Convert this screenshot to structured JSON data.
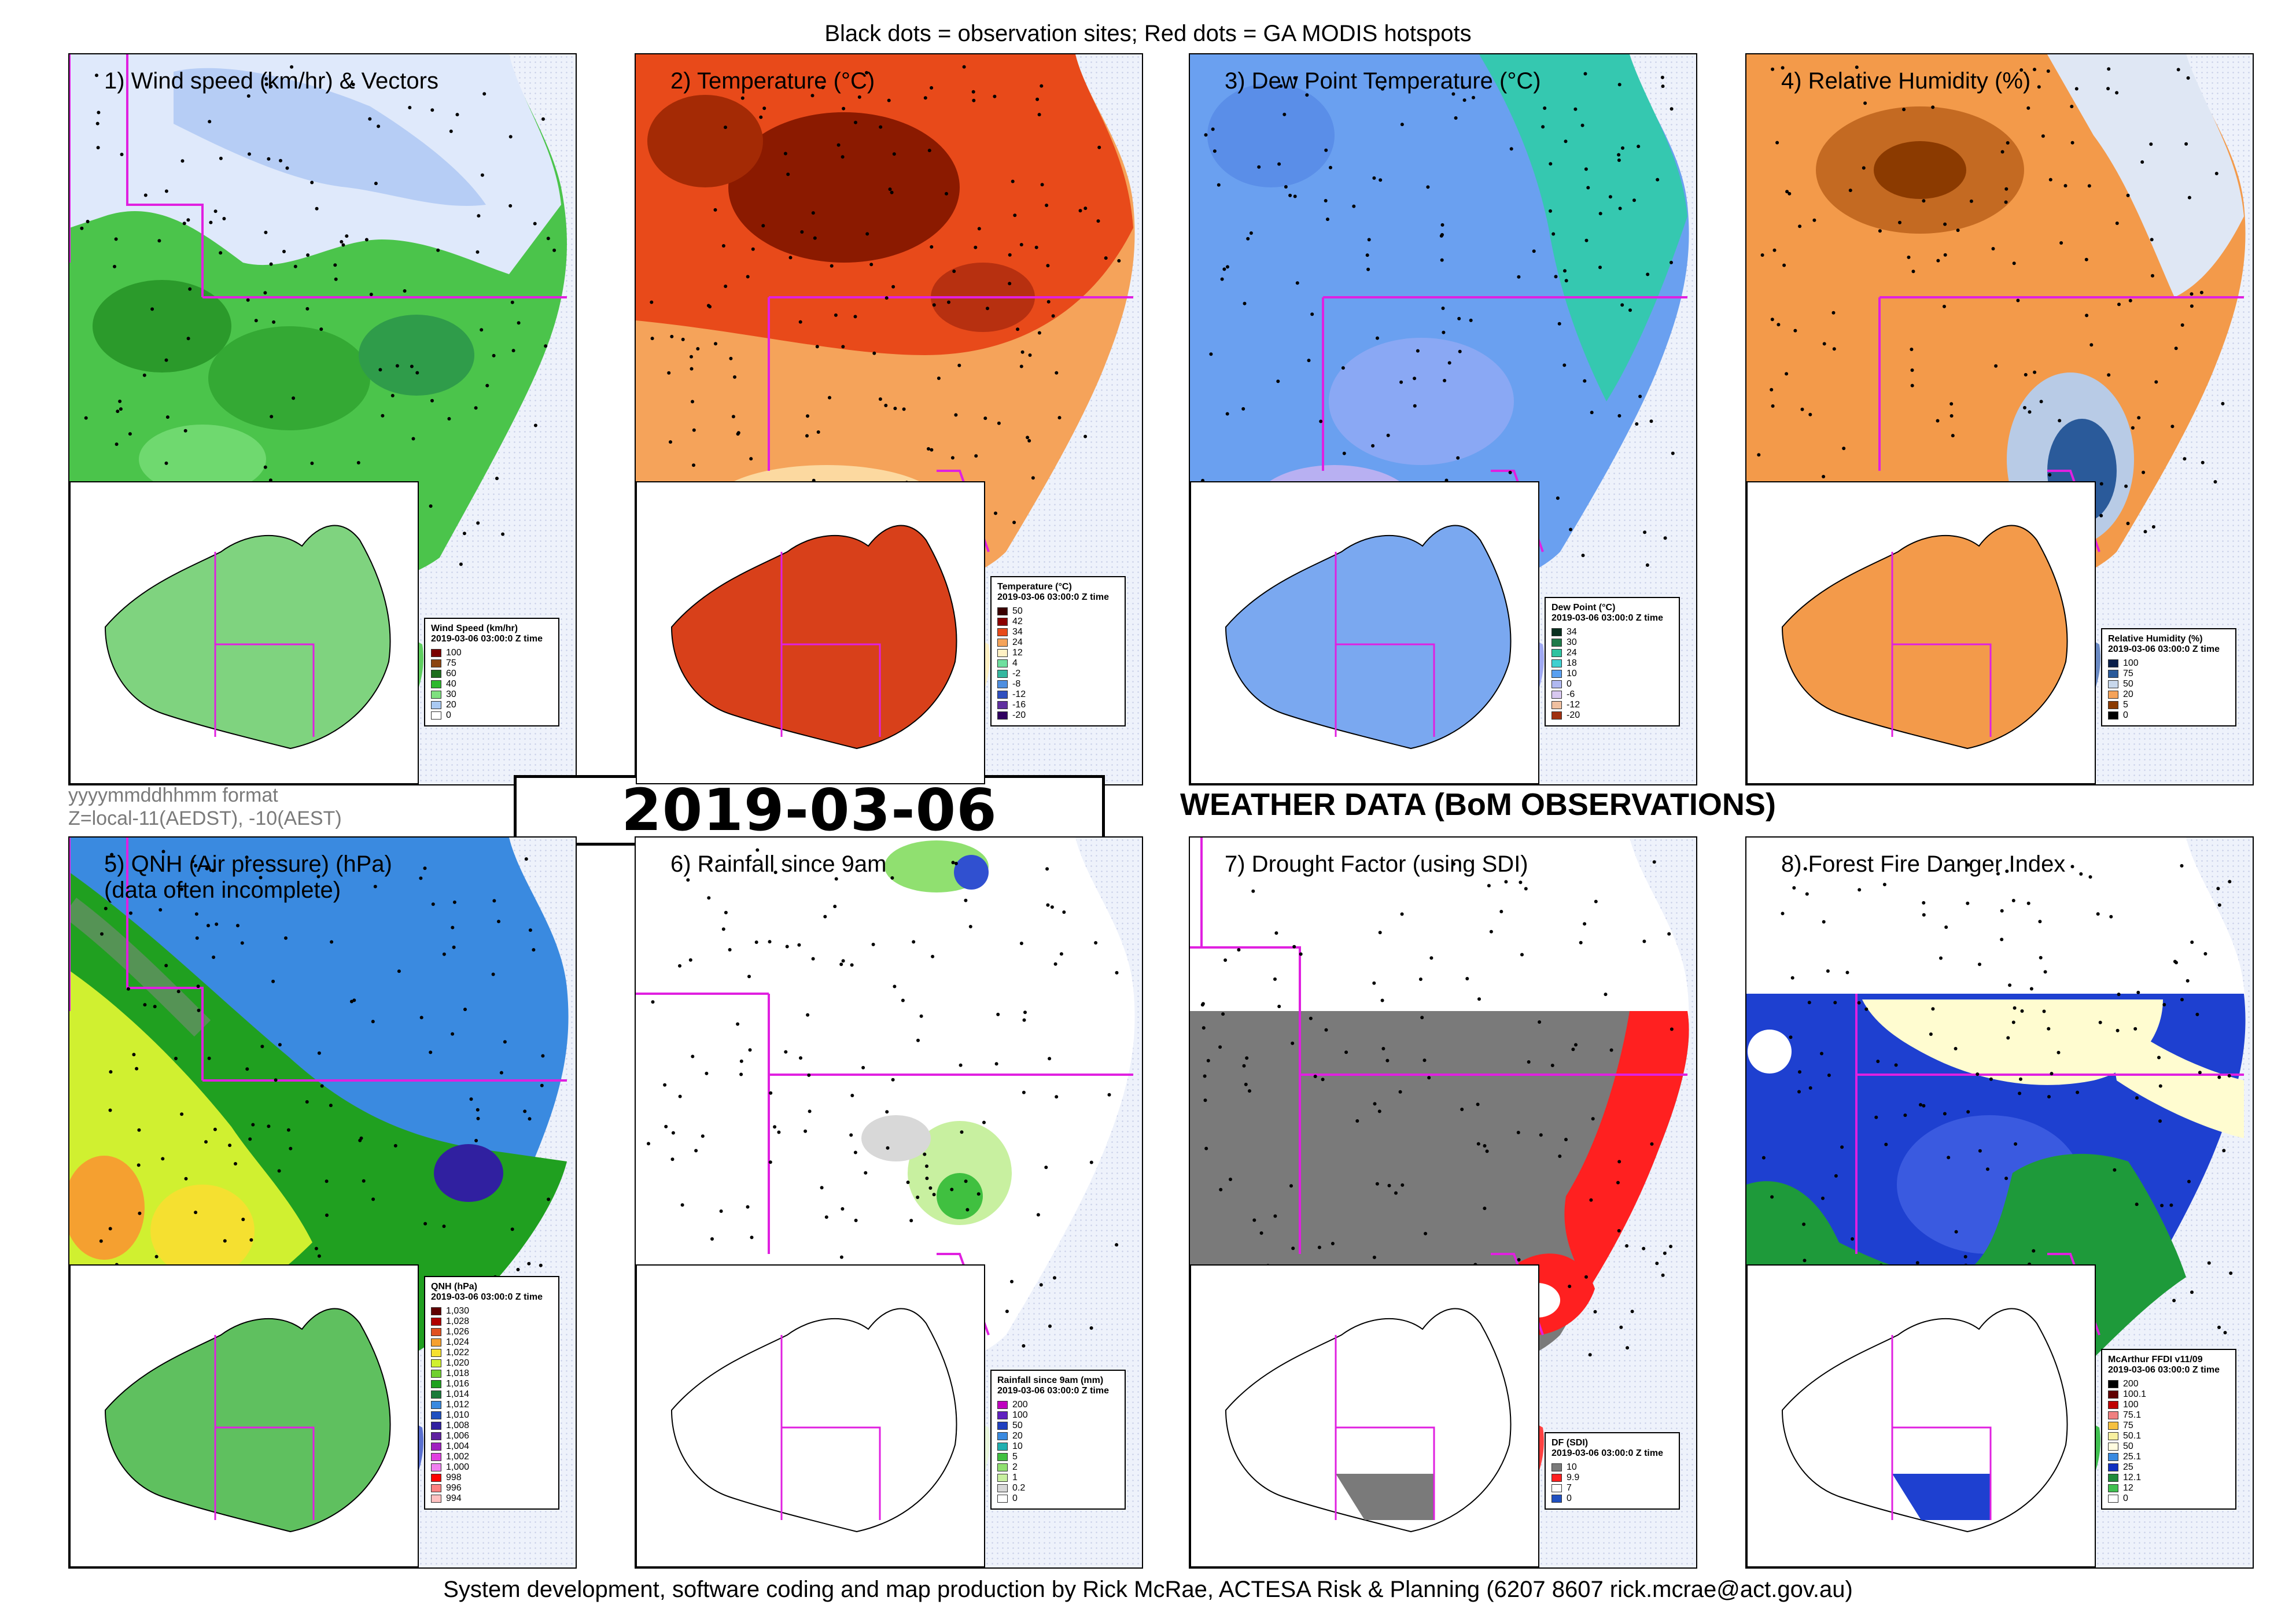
{
  "header": "Black dots = observation sites; Red dots = GA MODIS hotspots",
  "timestamp": "2019-03-06 03:00:0",
  "format_note": "yyyymmddhhmm format",
  "zone_note": "Z=local-11(AEDST), -10(AEST)",
  "section_title": "WEATHER DATA (BoM OBSERVATIONS)",
  "footer": "System development, software coding and map production by Rick McRae, ACTESA Risk & Planning (6207 8607 rick.mcrae@act.gov.au)",
  "panels": [
    {
      "title": "1) Wind speed (km/hr) & Vectors",
      "legend": {
        "title": "Wind Speed (km/hr)",
        "time": "2019-03-06 03:00:0 Z time",
        "entries": [
          {
            "label": "100",
            "color": "#7a0000"
          },
          {
            "label": "75",
            "color": "#8b4513"
          },
          {
            "label": "60",
            "color": "#1e6e1e"
          },
          {
            "label": "40",
            "color": "#2db82d"
          },
          {
            "label": "30",
            "color": "#7fe07f"
          },
          {
            "label": "20",
            "color": "#a9c9f2"
          },
          {
            "label": "0",
            "color": "#ffffff"
          }
        ]
      }
    },
    {
      "title": "2) Temperature (°C)",
      "legend": {
        "title": "Temperature (°C)",
        "time": "2019-03-06 03:00:0 Z time",
        "entries": [
          {
            "label": "50",
            "color": "#3a0000"
          },
          {
            "label": "42",
            "color": "#8b0000"
          },
          {
            "label": "34",
            "color": "#e84a1a"
          },
          {
            "label": "24",
            "color": "#f5a35a"
          },
          {
            "label": "12",
            "color": "#fff1c4"
          },
          {
            "label": "4",
            "color": "#6fe0a0"
          },
          {
            "label": "-2",
            "color": "#35b8a0"
          },
          {
            "label": "-8",
            "color": "#4f8fe0"
          },
          {
            "label": "-12",
            "color": "#3050c0"
          },
          {
            "label": "-16",
            "color": "#6030a0"
          },
          {
            "label": "-20",
            "color": "#300060"
          }
        ]
      }
    },
    {
      "title": "3) Dew Point Temperature (°C)",
      "legend": {
        "title": "Dew Point (°C)",
        "time": "2019-03-06 03:00:0 Z time",
        "entries": [
          {
            "label": "34",
            "color": "#0a3020"
          },
          {
            "label": "30",
            "color": "#1e7a4a"
          },
          {
            "label": "24",
            "color": "#2ec2a0"
          },
          {
            "label": "18",
            "color": "#40d0d0"
          },
          {
            "label": "10",
            "color": "#5aa0f0"
          },
          {
            "label": "0",
            "color": "#b0b8f0"
          },
          {
            "label": "-6",
            "color": "#d8c8f0"
          },
          {
            "label": "-12",
            "color": "#f0c0a0"
          },
          {
            "label": "-20",
            "color": "#a03010"
          }
        ]
      }
    },
    {
      "title": "4) Relative Humidity (%)",
      "legend": {
        "title": "Relative Humidity (%)",
        "time": "2019-03-06 03:00:0 Z time",
        "entries": [
          {
            "label": "100",
            "color": "#0a1f4a"
          },
          {
            "label": "75",
            "color": "#2a5a9a"
          },
          {
            "label": "50",
            "color": "#c8d8ec"
          },
          {
            "label": "20",
            "color": "#f5a35a"
          },
          {
            "label": "5",
            "color": "#8b3a00"
          },
          {
            "label": "0",
            "color": "#000000"
          }
        ]
      }
    },
    {
      "title": "5) QNH (Air pressure) (hPa)\n(data often incomplete)",
      "legend": {
        "title": "QNH (hPa)",
        "time": "2019-03-06 03:00:0 Z time",
        "entries": [
          {
            "label": "1,030",
            "color": "#600000"
          },
          {
            "label": "1,028",
            "color": "#b00000"
          },
          {
            "label": "1,026",
            "color": "#e05020"
          },
          {
            "label": "1,024",
            "color": "#f5a030"
          },
          {
            "label": "1,022",
            "color": "#f5e030"
          },
          {
            "label": "1,020",
            "color": "#d0f030"
          },
          {
            "label": "1,018",
            "color": "#70d030"
          },
          {
            "label": "1,016",
            "color": "#20a020"
          },
          {
            "label": "1,014",
            "color": "#1a7a3a"
          },
          {
            "label": "1,012",
            "color": "#3a8ae0"
          },
          {
            "label": "1,010",
            "color": "#2050c0"
          },
          {
            "label": "1,008",
            "color": "#3020a0"
          },
          {
            "label": "1,006",
            "color": "#6020a0"
          },
          {
            "label": "1,004",
            "color": "#a020c0"
          },
          {
            "label": "1,002",
            "color": "#e040e0"
          },
          {
            "label": "1,000",
            "color": "#f080f0"
          },
          {
            "label": "998",
            "color": "#ff0000"
          },
          {
            "label": "996",
            "color": "#ff8080"
          },
          {
            "label": "994",
            "color": "#ffc0c0"
          }
        ]
      }
    },
    {
      "title": "6) Rainfall since 9am",
      "legend": {
        "title": "Rainfall since 9am (mm)",
        "time": "2019-03-06 03:00:0 Z time",
        "entries": [
          {
            "label": "200",
            "color": "#c000c0"
          },
          {
            "label": "100",
            "color": "#6020c0"
          },
          {
            "label": "50",
            "color": "#2040c0"
          },
          {
            "label": "20",
            "color": "#3a8ae0"
          },
          {
            "label": "10",
            "color": "#20b0b0"
          },
          {
            "label": "5",
            "color": "#40c040"
          },
          {
            "label": "2",
            "color": "#90e070"
          },
          {
            "label": "1",
            "color": "#c8f0a0"
          },
          {
            "label": "0.2",
            "color": "#d8d8d8"
          },
          {
            "label": "0",
            "color": "#ffffff"
          }
        ]
      }
    },
    {
      "title": "7) Drought Factor (using SDI)",
      "legend": {
        "title": "DF (SDI)",
        "time": "2019-03-06 03:00:0 Z time",
        "entries": [
          {
            "label": "10",
            "color": "#7a7a7a"
          },
          {
            "label": "9.9",
            "color": "#ff2020"
          },
          {
            "label": "7",
            "color": "#ffffff"
          },
          {
            "label": "0",
            "color": "#2050c0"
          }
        ]
      }
    },
    {
      "title": "8) Forest Fire Danger Index",
      "legend": {
        "title": "McArthur FFDI v11/09",
        "time": "2019-03-06 03:00:0 Z time",
        "entries": [
          {
            "label": "200",
            "color": "#000000"
          },
          {
            "label": "100.1",
            "color": "#600000"
          },
          {
            "label": "100",
            "color": "#c00000"
          },
          {
            "label": "75.1",
            "color": "#f08080"
          },
          {
            "label": "75",
            "color": "#f5c040"
          },
          {
            "label": "50.1",
            "color": "#f8f0a0"
          },
          {
            "label": "50",
            "color": "#fffce0"
          },
          {
            "label": "25.1",
            "color": "#3a8ae0"
          },
          {
            "label": "25",
            "color": "#1030c0"
          },
          {
            "label": "12.1",
            "color": "#1e8a3a"
          },
          {
            "label": "12",
            "color": "#40c050"
          },
          {
            "label": "0",
            "color": "#ffffff"
          }
        ]
      }
    }
  ]
}
